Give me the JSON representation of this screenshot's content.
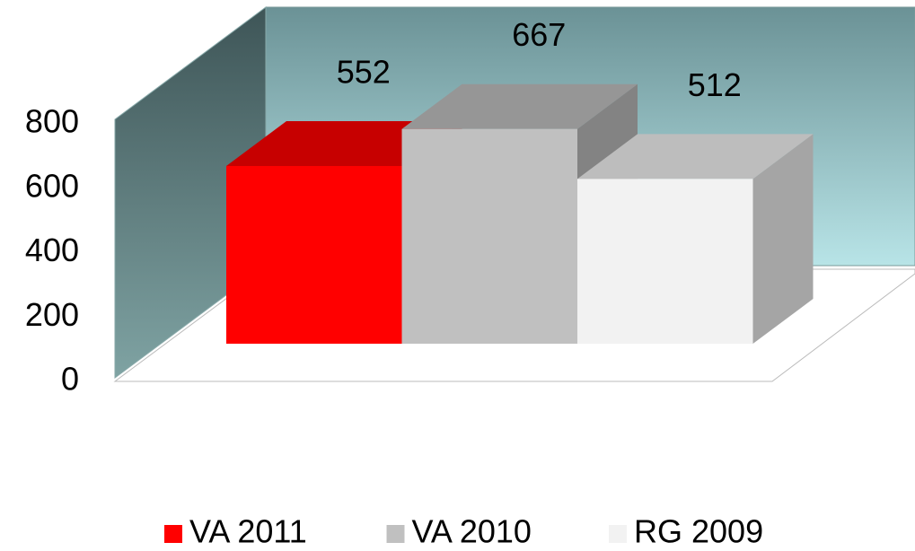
{
  "chart_data": {
    "type": "bar",
    "categories": [
      null
    ],
    "series": [
      {
        "name": "VA 2011",
        "color": "#ff0000",
        "values": [
          552
        ]
      },
      {
        "name": "VA 2010",
        "color": "#c0c0c0",
        "values": [
          667
        ]
      },
      {
        "name": "RG 2009",
        "color": "#f2f2f2",
        "values": [
          512
        ]
      }
    ],
    "ylim": [
      0,
      800
    ],
    "yticks": [
      0,
      200,
      400,
      600,
      800
    ],
    "legend": "bottom"
  }
}
